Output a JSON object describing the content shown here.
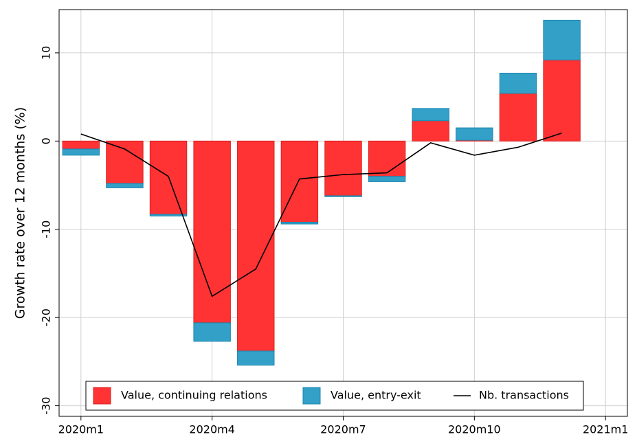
{
  "chart_data": {
    "type": "bar",
    "stacked": true,
    "y_label": "Growth rate over 12 months (%)",
    "x": [
      0,
      1,
      2,
      3,
      4,
      5,
      6,
      7,
      8,
      9,
      10,
      11
    ],
    "xlim": [
      -0.5,
      12.5
    ],
    "xticks": [
      {
        "value": 0,
        "label": "2020m1"
      },
      {
        "value": 3,
        "label": "2020m4"
      },
      {
        "value": 6,
        "label": "2020m7"
      },
      {
        "value": 9,
        "label": "2020m10"
      },
      {
        "value": 12,
        "label": "2021m1"
      }
    ],
    "ylim": [
      -31.2,
      14.9
    ],
    "yticks": [
      -30,
      -20,
      -10,
      0,
      10
    ],
    "grid": true,
    "legend": "bottom",
    "series": [
      {
        "name": "Value, continuing relations",
        "type": "bar",
        "color": "#ff3333",
        "values": [
          -0.9,
          -4.8,
          -8.3,
          -20.6,
          -23.8,
          -9.2,
          -6.2,
          -4.0,
          2.3,
          0.1,
          5.4,
          9.2
        ]
      },
      {
        "name": "Value, entry-exit",
        "type": "bar",
        "color": "#33a0c8",
        "values": [
          -0.7,
          -0.5,
          -0.2,
          -2.1,
          -1.6,
          -0.2,
          -0.1,
          -0.6,
          1.4,
          1.4,
          2.3,
          4.5
        ]
      },
      {
        "name": "Nb. transactions",
        "type": "line",
        "color": "#000000",
        "values": [
          0.8,
          -0.9,
          -4.0,
          -17.6,
          -14.5,
          -4.3,
          -3.8,
          -3.6,
          -0.2,
          -1.6,
          -0.7,
          0.9
        ]
      }
    ]
  }
}
